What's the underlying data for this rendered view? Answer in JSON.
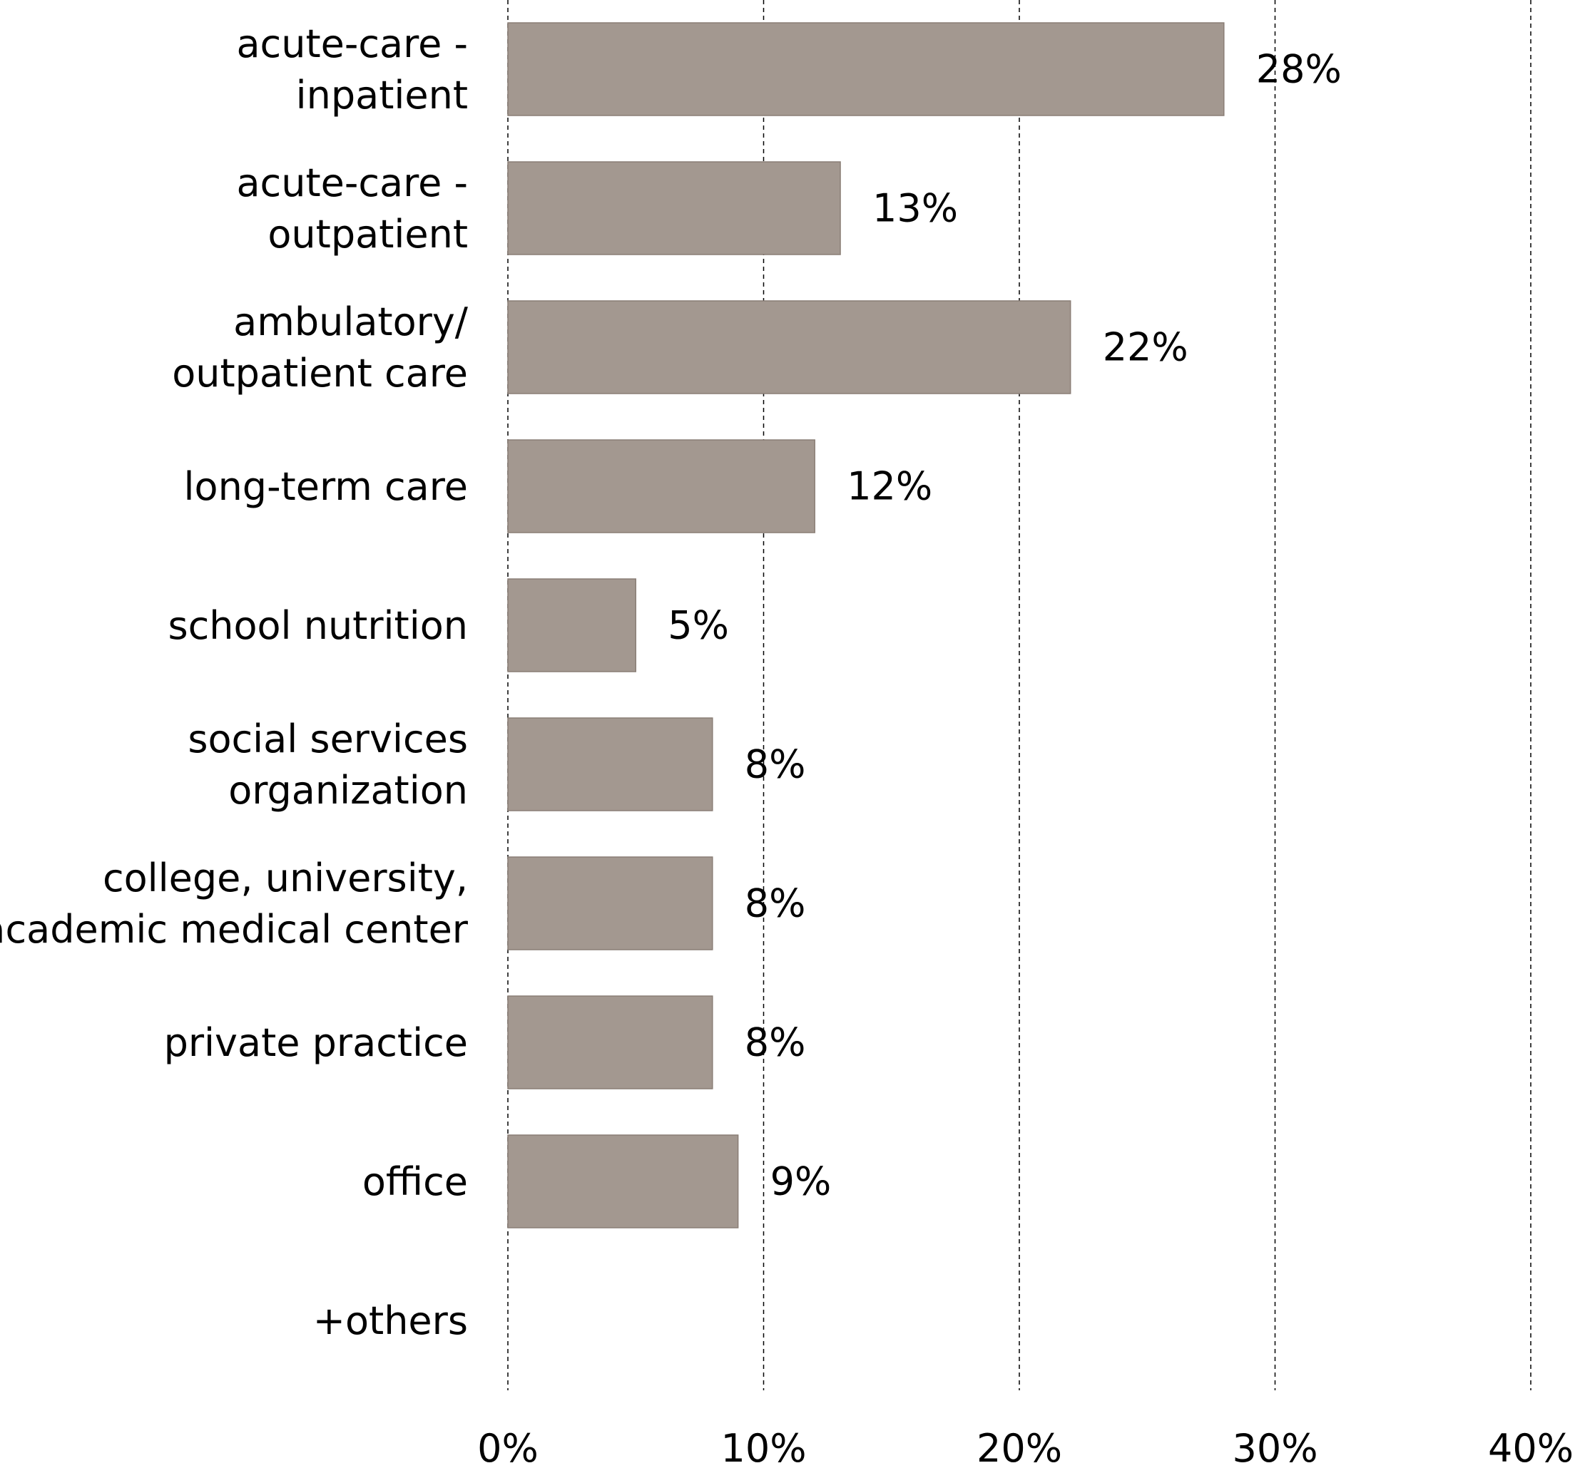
{
  "chart_data": {
    "type": "bar",
    "orientation": "horizontal",
    "categories": [
      [
        "acute-care -",
        "inpatient"
      ],
      [
        "acute-care -",
        "outpatient"
      ],
      [
        "ambulatory/",
        "outpatient care"
      ],
      [
        "long-term care"
      ],
      [
        "school nutrition"
      ],
      [
        "social services",
        "organization"
      ],
      [
        "college, university,",
        "academic medical center"
      ],
      [
        "private practice"
      ],
      [
        "office"
      ],
      [
        "+others"
      ]
    ],
    "values": [
      28,
      13,
      22,
      12,
      5,
      8,
      8,
      8,
      9,
      null
    ],
    "data_labels": [
      "28%",
      "13%",
      "22%",
      "12%",
      "5%",
      "8%",
      "8%",
      "8%",
      "9%",
      ""
    ],
    "xlim": [
      0,
      40
    ],
    "x_ticks": [
      0,
      10,
      20,
      30,
      40
    ],
    "x_tick_labels": [
      "0%",
      "10%",
      "20%",
      "30%",
      "40%"
    ],
    "grid": "vertical dashed",
    "bar_color": "#a39890",
    "title": "",
    "xlabel": "",
    "ylabel": ""
  }
}
